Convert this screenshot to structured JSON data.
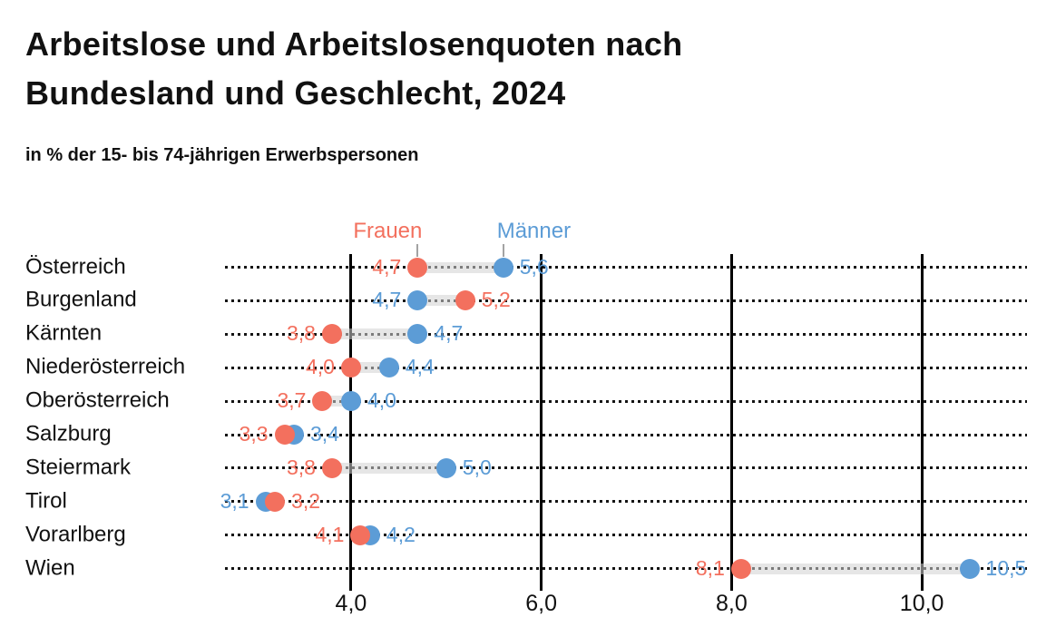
{
  "chart_data": {
    "type": "dumbbell",
    "title": "Arbeitslose und Arbeitslosenquoten nach\nBundesland und Geschlecht, 2024",
    "subtitle": "in % der 15- bis 74-jährigen Erwerbspersonen",
    "legend_position": "top-inline-above-first-row",
    "grid": "vertical-solid-black",
    "row_leader_line": "dotted",
    "categories": [
      "Österreich",
      "Burgenland",
      "Kärnten",
      "Niederösterreich",
      "Oberösterreich",
      "Salzburg",
      "Steiermark",
      "Tirol",
      "Vorarlberg",
      "Wien"
    ],
    "series": [
      {
        "name": "Frauen",
        "color": "#f3705e",
        "values": [
          4.7,
          5.2,
          3.8,
          4.0,
          3.7,
          3.3,
          3.8,
          3.2,
          4.1,
          8.1
        ],
        "labels": [
          "4,7",
          "5,2",
          "3,8",
          "4,0",
          "3,7",
          "3,3",
          "3,8",
          "3,2",
          "4,1",
          "8,1"
        ]
      },
      {
        "name": "Männer",
        "color": "#5c9cd6",
        "values": [
          5.6,
          4.7,
          4.7,
          4.4,
          4.0,
          3.4,
          5.0,
          3.1,
          4.2,
          10.5
        ],
        "labels": [
          "5,6",
          "4,7",
          "4,7",
          "4,4",
          "4,0",
          "3,4",
          "5,0",
          "3,1",
          "4,2",
          "10,5"
        ]
      }
    ],
    "x_ticks": [
      {
        "value": 4,
        "label": "4,0"
      },
      {
        "value": 6,
        "label": "6,0"
      },
      {
        "value": 8,
        "label": "8,0"
      },
      {
        "value": 10,
        "label": "10,0"
      }
    ],
    "xlim": [
      2.675,
      11.105
    ],
    "colors": {
      "frauen": "#f3705e",
      "maenner": "#5c9cd6",
      "band": "#e3e3e3",
      "grid": "#000000",
      "text": "#111111",
      "legend_connector": "#a3a3a3"
    }
  }
}
